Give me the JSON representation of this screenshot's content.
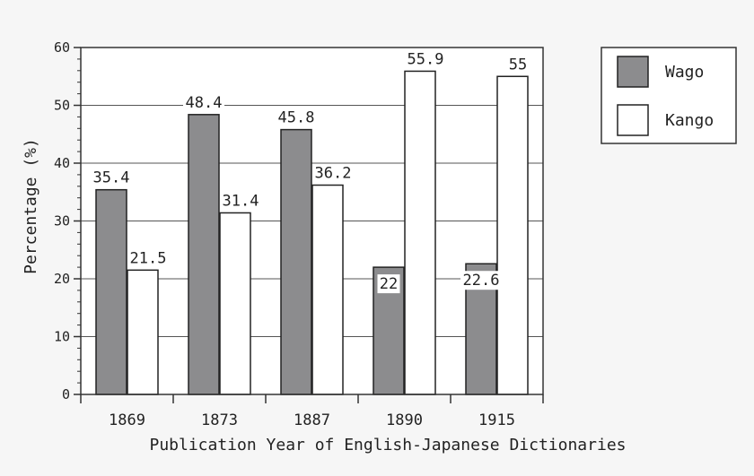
{
  "chart_data": {
    "type": "bar",
    "categories": [
      "1869",
      "1873",
      "1887",
      "1890",
      "1915"
    ],
    "series": [
      {
        "name": "Wago",
        "values": [
          35.4,
          48.4,
          45.8,
          22,
          22.6
        ],
        "color": "#8c8c8e"
      },
      {
        "name": "Kango",
        "values": [
          21.5,
          31.4,
          36.2,
          55.9,
          55
        ],
        "color": "#ffffff"
      }
    ],
    "data_labels": [
      [
        "35.4",
        "48.4",
        "45.8",
        "22",
        "22.6"
      ],
      [
        "21.5",
        "31.4",
        "36.2",
        "55.9",
        "55"
      ]
    ],
    "xlabel": "Publication Year of English-Japanese Dictionaries",
    "ylabel": "Percentage (%)",
    "ylim": [
      0,
      60
    ],
    "yticks": [
      "0",
      "10",
      "20",
      "30",
      "40",
      "50",
      "60"
    ],
    "grid": true,
    "legend_position": "top-right",
    "background_color": "#f6f6f6"
  }
}
